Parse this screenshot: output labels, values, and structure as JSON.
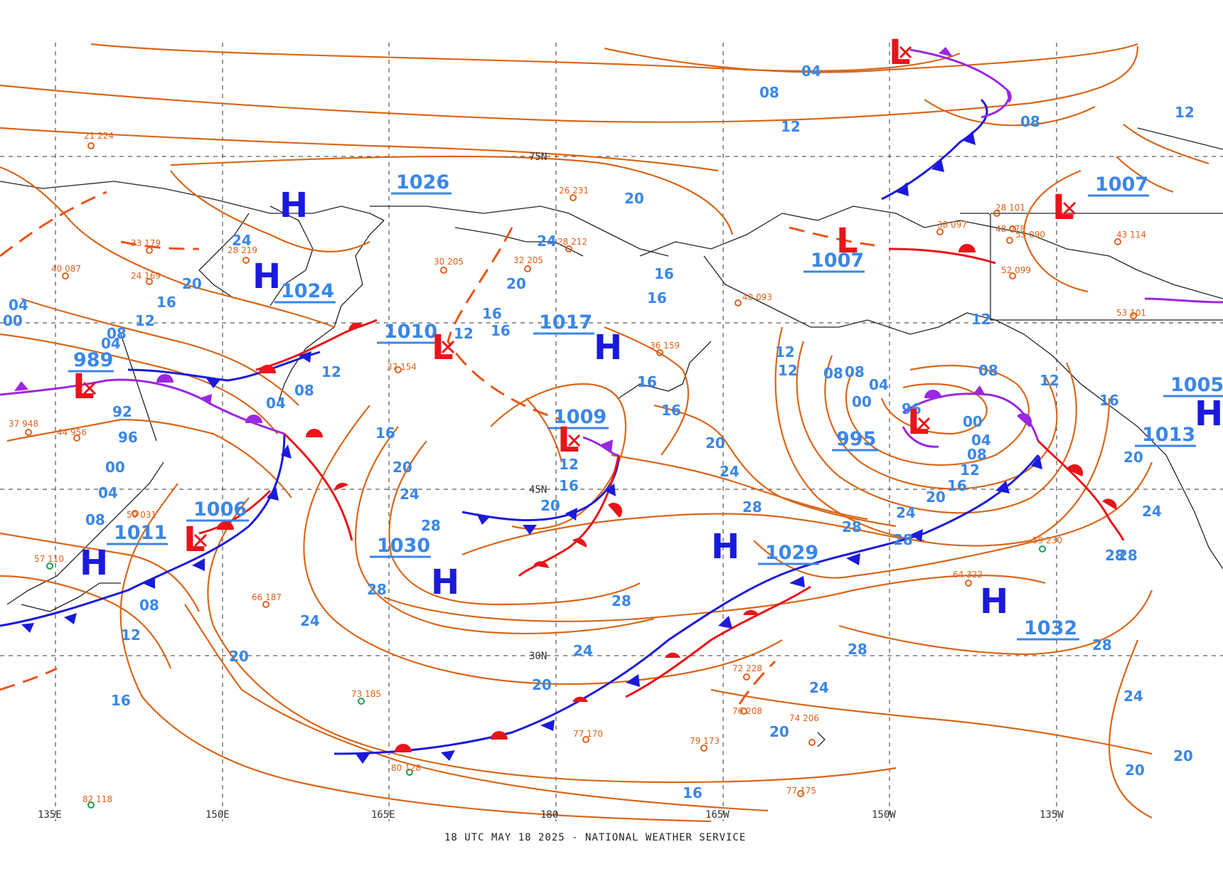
{
  "footer": "18 UTC MAY 18 2025 - NATIONAL WEATHER SERVICE",
  "longitudes": [
    "135E",
    "150E",
    "165E",
    "180",
    "165W",
    "150W",
    "135W"
  ],
  "latitudes": [
    "75N",
    "45N",
    "30N"
  ],
  "pressure_centers": [
    {
      "type": "H",
      "value": "1026"
    },
    {
      "type": "H",
      "value": "1024"
    },
    {
      "type": "H",
      "value": "1017"
    },
    {
      "type": "L",
      "value": "1010"
    },
    {
      "type": "L",
      "value": "1009"
    },
    {
      "type": "L",
      "value": "989"
    },
    {
      "type": "L",
      "value": "1006"
    },
    {
      "type": "H",
      "value": "1011"
    },
    {
      "type": "H",
      "value": "1030"
    },
    {
      "type": "H",
      "value": "1029"
    },
    {
      "type": "L",
      "value": "995"
    },
    {
      "type": "L",
      "value": "1007"
    },
    {
      "type": "L",
      "value": "1007"
    },
    {
      "type": "H",
      "value": "1032"
    },
    {
      "type": "H",
      "value": "1005"
    },
    {
      "type": "H",
      "value": "1013"
    }
  ],
  "isobar_labels": [
    "04",
    "08",
    "12",
    "16",
    "20",
    "24",
    "28",
    "00",
    "92",
    "96"
  ],
  "colors": {
    "isobar": "#d8661a",
    "isobar_label": "#3a86e8",
    "high": "#1a1adb",
    "low": "#e8141a",
    "cold_front": "#1a1adb",
    "warm_front": "#e8141a",
    "occluded_front": "#9a28e0"
  },
  "stations": [
    {
      "t": "21 224"
    },
    {
      "t": "28 219"
    },
    {
      "t": "30 205"
    },
    {
      "t": "32 205"
    },
    {
      "t": "26 231"
    },
    {
      "t": "28 212"
    },
    {
      "t": "40 087"
    },
    {
      "t": "24 169"
    },
    {
      "t": "33 179"
    },
    {
      "t": "36 159"
    },
    {
      "t": "37 154"
    },
    {
      "t": "40 093"
    },
    {
      "t": "66 187"
    },
    {
      "t": "73 185"
    },
    {
      "t": "72 228"
    },
    {
      "t": "76 208"
    },
    {
      "t": "77 170"
    },
    {
      "t": "79 173"
    },
    {
      "t": "80 128"
    },
    {
      "t": "82 118"
    },
    {
      "t": "74 206"
    },
    {
      "t": "77 175"
    },
    {
      "t": "64 322"
    },
    {
      "t": "59 230"
    },
    {
      "t": "50 031"
    },
    {
      "t": "57 110"
    },
    {
      "t": "37 948"
    },
    {
      "t": "44 956"
    },
    {
      "t": "53 090"
    },
    {
      "t": "43 114"
    },
    {
      "t": "28 101"
    },
    {
      "t": "48 078"
    },
    {
      "t": "38 097"
    },
    {
      "t": "52 099"
    },
    {
      "t": "53 101"
    }
  ]
}
